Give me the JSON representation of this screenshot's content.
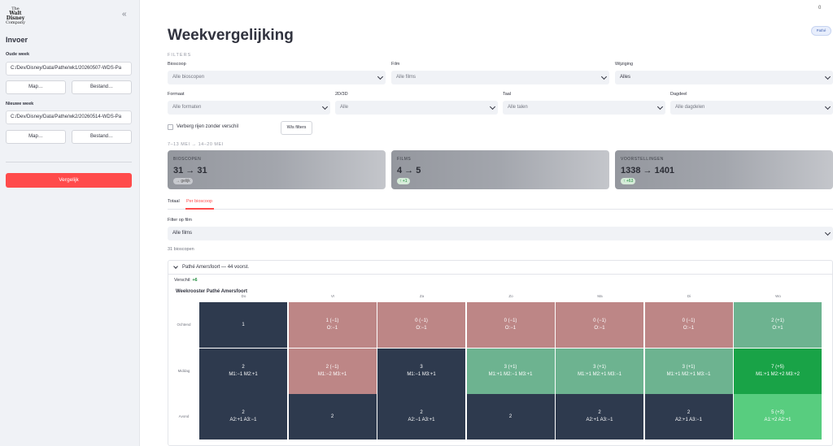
{
  "colors": {
    "accent": "#ff4b4b",
    "dark": "#2e3a4e",
    "red": "#bd8686",
    "green_light": "#6db390",
    "green_mid": "#58cd7f",
    "green_dark": "#19a347"
  },
  "sidebar": {
    "logo_text": "The Walt Disney Company",
    "collapse_icon": "double-chevron-left-icon",
    "title": "Invoer",
    "old_week_label": "Oude week",
    "old_week_value": "C:/Dev/Disney/Data/Pathe/wk1/20260507-WDS-Pa",
    "new_week_label": "Nieuwe week",
    "new_week_value": "C:/Dev/Disney/Data/Pathe/wk2/20260514-WDS-Pa",
    "folder_btn": "Map…",
    "file_btn": "Bestand…",
    "compare_btn": "Vergelijk"
  },
  "header": {
    "top_dot": "0",
    "pill": "Pathé",
    "title": "Weekvergelijking"
  },
  "filters": {
    "section": "FILTERS",
    "row1": [
      {
        "label": "Bioscoop",
        "value": "Alle bioscopen"
      },
      {
        "label": "Film",
        "value": "Alle films"
      },
      {
        "label": "Wijziging",
        "value": "Alles"
      }
    ],
    "row2": [
      {
        "label": "Formaat",
        "value": "Alle formaten"
      },
      {
        "label": "2D/3D",
        "value": "Alle"
      },
      {
        "label": "Taal",
        "value": "Alle talen"
      },
      {
        "label": "Dagdeel",
        "value": "Alle dagdelen"
      }
    ],
    "hide_no_diff": "Verberg rijen zonder verschil",
    "clear": "Wis filters"
  },
  "period": "7–13 MEI → 14–20 MEI",
  "cards": [
    {
      "label": "BIOSCOPEN",
      "value": "31 → 31",
      "delta": "→ gelijk",
      "trend": "neutral"
    },
    {
      "label": "FILMS",
      "value": "4 → 5",
      "delta": "↑ +1",
      "trend": "up"
    },
    {
      "label": "VOORSTELLINGEN",
      "value": "1338 → 1401",
      "delta": "↑ +63",
      "trend": "up"
    }
  ],
  "tabs": [
    "Totaal",
    "Per bioscoop"
  ],
  "film_filter": {
    "label": "Filter op film",
    "value": "Alle films"
  },
  "cinema_count": "31 bioscopen",
  "cinema": {
    "title": "Pathé Amersfoort — 44 voorst.",
    "verschil_label": "Verschil:",
    "verschil_value": "+6",
    "grid_title": "Weekrooster Pathé Amersfoort"
  },
  "days": [
    "Do",
    "Vr",
    "Za",
    "Zo",
    "Ma",
    "Di",
    "Wo"
  ],
  "dayparts": [
    "Ochtend",
    "Middag",
    "Avond"
  ],
  "grid": [
    [
      {
        "l1": "1",
        "l2": "",
        "c": "dark"
      },
      {
        "l1": "1 (−1)",
        "l2": "O:−1",
        "c": "red"
      },
      {
        "l1": "0 (−1)",
        "l2": "O:−1",
        "c": "red"
      },
      {
        "l1": "0 (−1)",
        "l2": "O:−1",
        "c": "red"
      },
      {
        "l1": "0 (−1)",
        "l2": "O:−1",
        "c": "red"
      },
      {
        "l1": "0 (−1)",
        "l2": "O:−1",
        "c": "red"
      },
      {
        "l1": "2 (+1)",
        "l2": "O:+1",
        "c": "green_light"
      }
    ],
    [
      {
        "l1": "2",
        "l2": "M1:−1 M2:+1",
        "c": "dark"
      },
      {
        "l1": "2 (−1)",
        "l2": "M1:−2 M3:+1",
        "c": "red"
      },
      {
        "l1": "3",
        "l2": "M1:−1 M3:+1",
        "c": "dark"
      },
      {
        "l1": "3 (+1)",
        "l2": "M1:+1 M2:−1 M3:+1",
        "c": "green_light"
      },
      {
        "l1": "3 (+1)",
        "l2": "M1:+1 M2:+1 M3:−1",
        "c": "green_light"
      },
      {
        "l1": "3 (+1)",
        "l2": "M1:+1 M2:+1 M3:−1",
        "c": "green_light"
      },
      {
        "l1": "7 (+5)",
        "l2": "M1:+1 M2:+2 M3:+2",
        "c": "green_dark"
      }
    ],
    [
      {
        "l1": "2",
        "l2": "A2:+1 A3:−1",
        "c": "dark"
      },
      {
        "l1": "2",
        "l2": "",
        "c": "dark"
      },
      {
        "l1": "2",
        "l2": "A2:−1 A3:+1",
        "c": "dark"
      },
      {
        "l1": "2",
        "l2": "",
        "c": "dark"
      },
      {
        "l1": "2",
        "l2": "A2:+1 A3:−1",
        "c": "dark"
      },
      {
        "l1": "2",
        "l2": "A2:+1 A3:−1",
        "c": "dark"
      },
      {
        "l1": "5 (+3)",
        "l2": "A1:+2 A2:+1",
        "c": "green_mid"
      }
    ]
  ]
}
